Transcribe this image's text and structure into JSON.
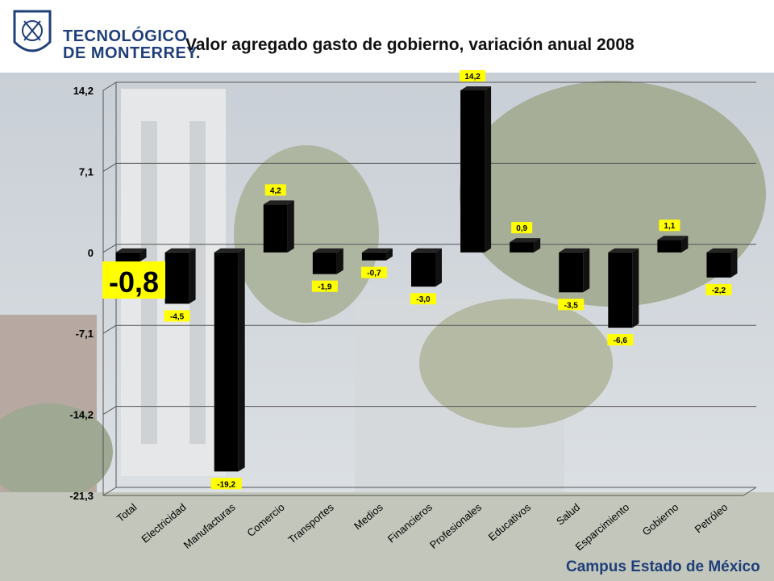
{
  "header": {
    "logo_line1": "TECNOLÓGICO",
    "logo_line2": "DE MONTERREY."
  },
  "footer": {
    "campus": "Campus Estado de México"
  },
  "colors": {
    "bar": "#000000",
    "label_bg": "#ffff00",
    "logo": "#1f3f7a"
  },
  "chart_data": {
    "type": "bar",
    "title": "Valor agregado gasto de gobierno, variación anual 2008",
    "categories": [
      "Total",
      "Electricidad",
      "Manufacturas",
      "Comercio",
      "Transportes",
      "Medios",
      "Financieros",
      "Profesionales",
      "Educativos",
      "Salud",
      "Esparcimiento",
      "Gobierno",
      "Petróleo"
    ],
    "values": [
      -0.8,
      -4.5,
      -19.2,
      4.2,
      -1.9,
      -0.7,
      -3.0,
      14.2,
      0.9,
      -3.5,
      -6.6,
      1.1,
      -2.2
    ],
    "value_labels": [
      "-0,8",
      "-4,5",
      "-19,2",
      "4,2",
      "-1,9",
      "-0,7",
      "-3,0",
      "14,2",
      "0,9",
      "-3,5",
      "-6,6",
      "1,1",
      "-2,2"
    ],
    "highlight_label": "-0,8",
    "yticks": [
      14.2,
      7.1,
      0,
      -7.1,
      -14.2,
      -21.3
    ],
    "ytick_labels": [
      "14,2",
      "7,1",
      "0",
      "-7,1",
      "-14,2",
      "-21,3"
    ],
    "ylim": [
      -21.3,
      14.2
    ],
    "grid": true,
    "style": "3d"
  }
}
